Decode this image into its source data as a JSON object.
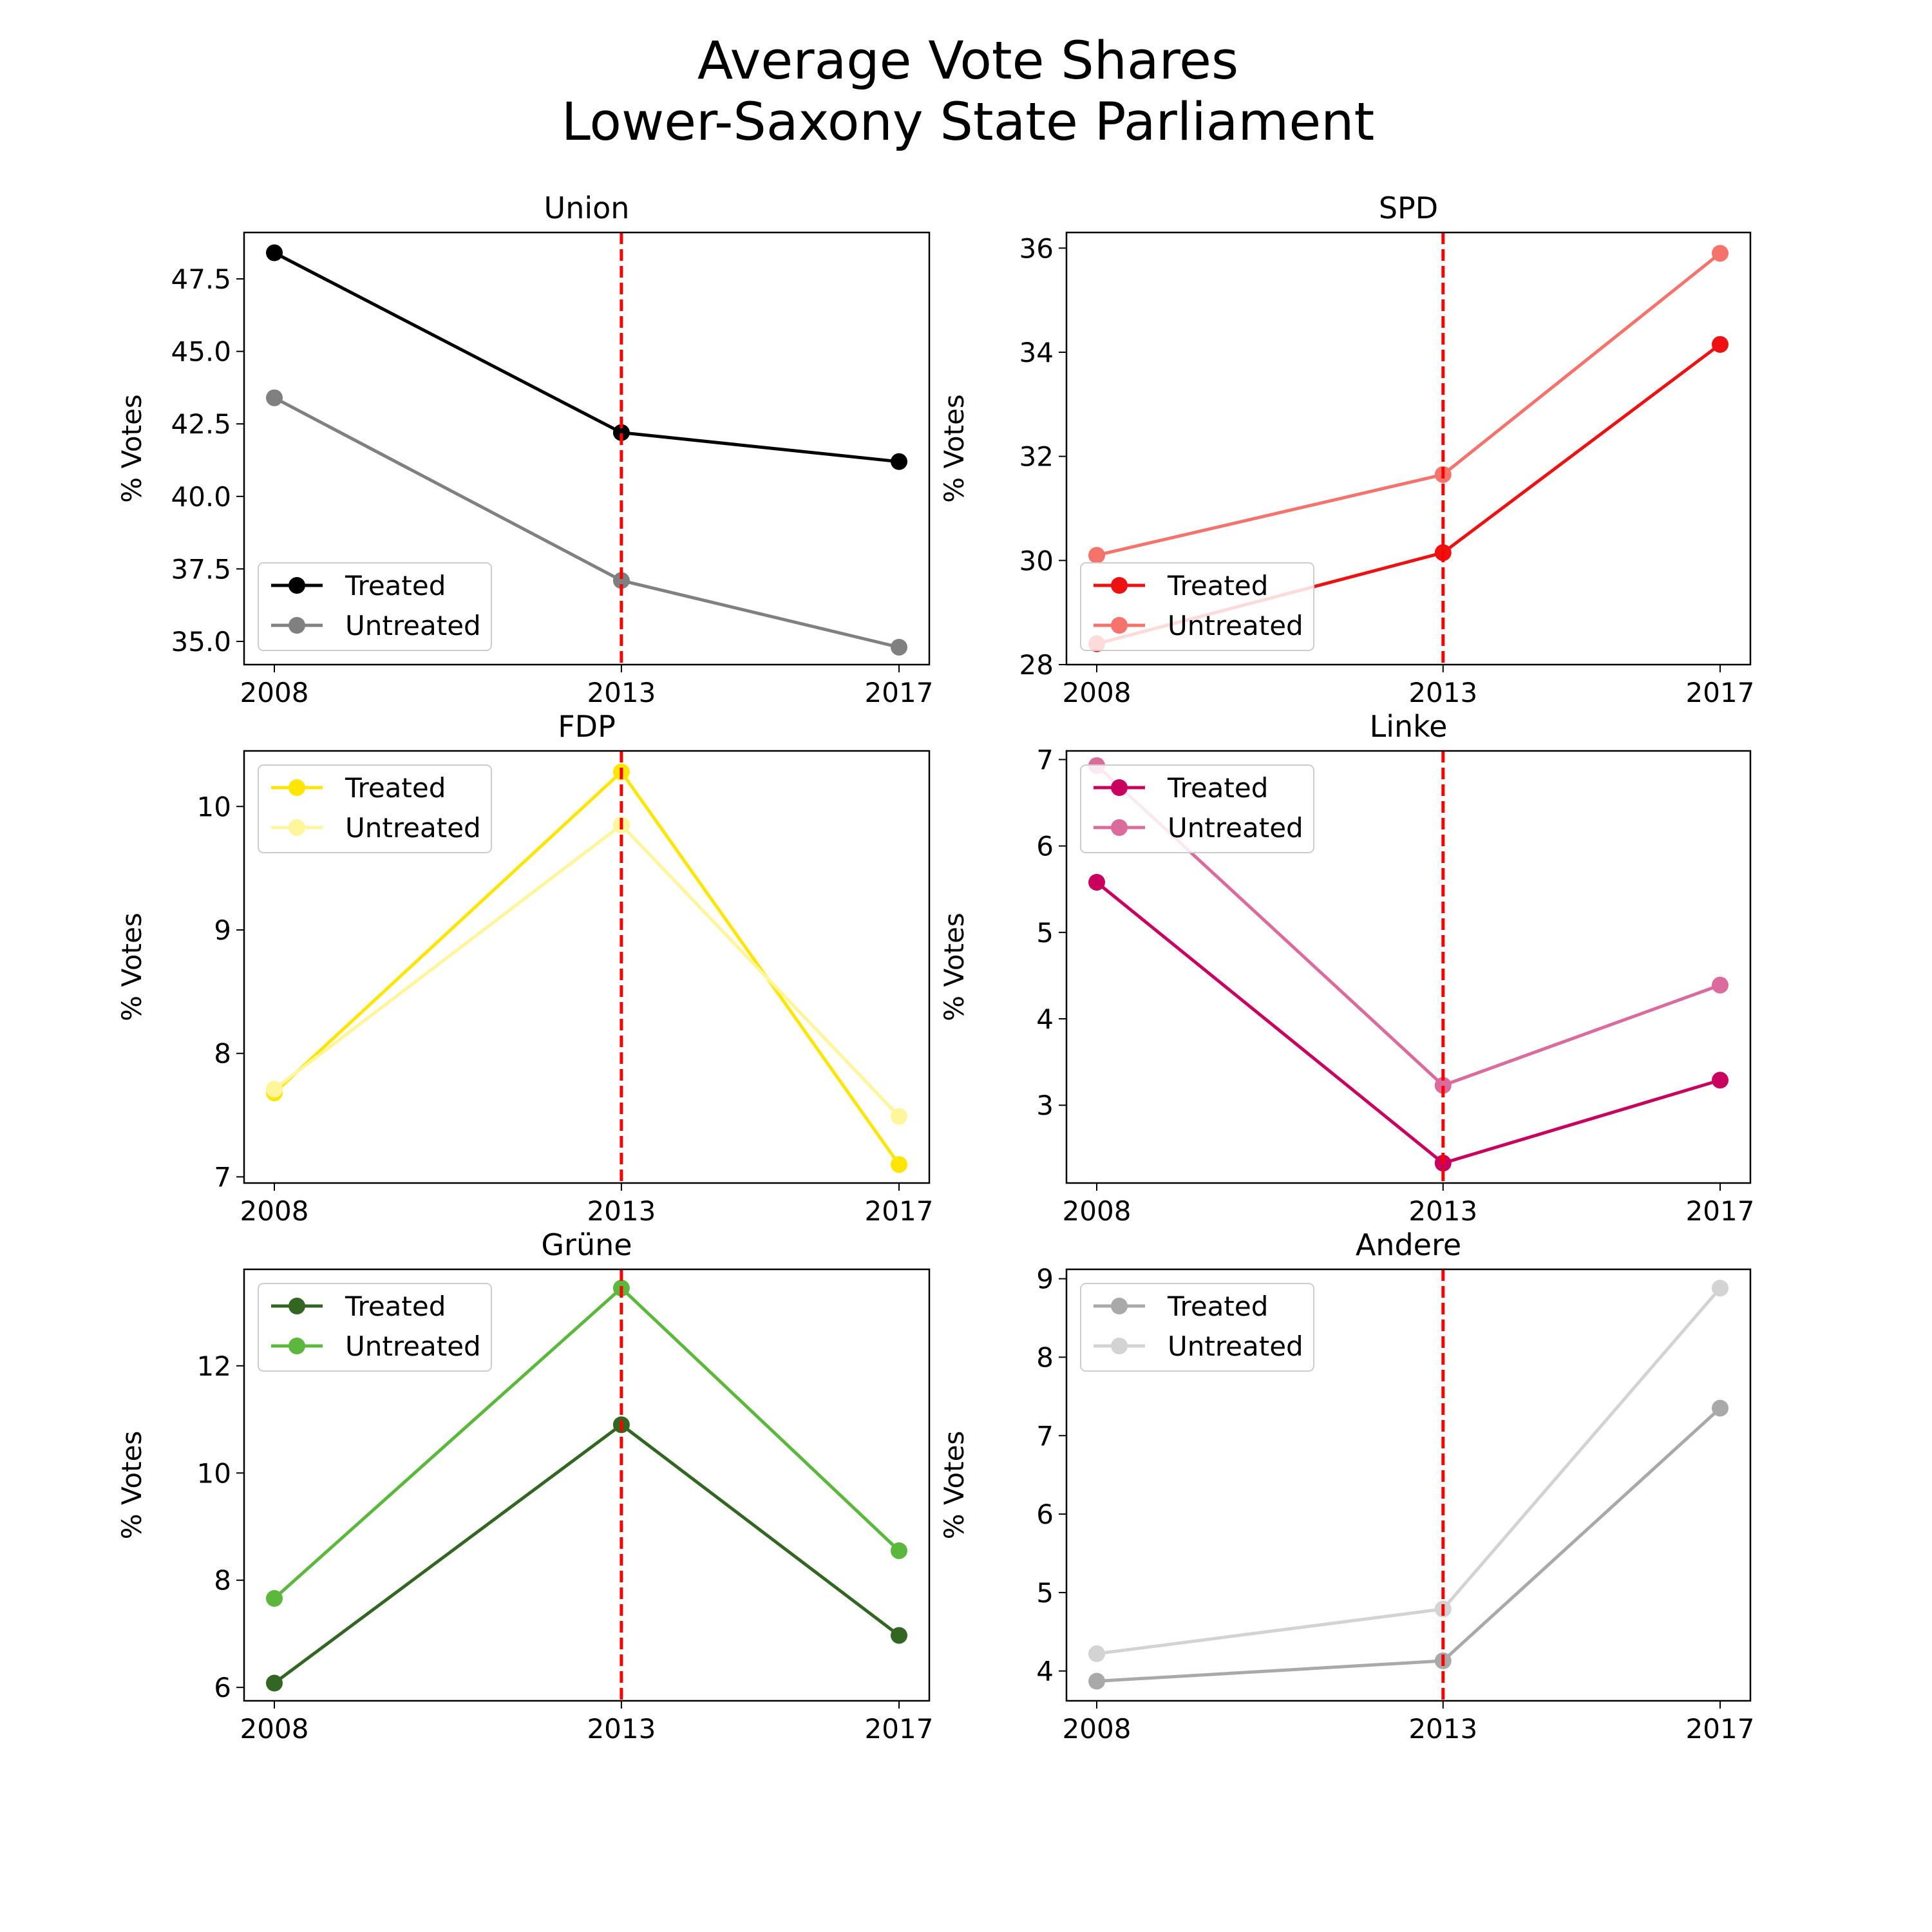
{
  "title_line1": "Average Vote Shares",
  "title_line2": "Lower-Saxony State Parliament",
  "treatment_line_color": "#ff0000",
  "chart_data": [
    {
      "type": "line",
      "title": "Union",
      "ylabel": "% Votes",
      "x": [
        2008,
        2013,
        2017
      ],
      "ylim": [
        34.2,
        49.1
      ],
      "yticks": [
        35.0,
        37.5,
        40.0,
        42.5,
        45.0,
        47.5
      ],
      "ytick_decimals": 1,
      "legend_position": "lower-left",
      "treatment_year": 2013,
      "series": [
        {
          "name": "Treated",
          "color": "#000000",
          "values": [
            48.4,
            42.2,
            41.2
          ]
        },
        {
          "name": "Untreated",
          "color": "#808080",
          "values": [
            43.4,
            37.1,
            34.8
          ]
        }
      ]
    },
    {
      "type": "line",
      "title": "SPD",
      "ylabel": "% Votes",
      "x": [
        2008,
        2013,
        2017
      ],
      "ylim": [
        28.0,
        36.3
      ],
      "yticks": [
        28,
        30,
        32,
        34,
        36
      ],
      "ytick_decimals": 0,
      "legend_position": "lower-left",
      "treatment_year": 2013,
      "series": [
        {
          "name": "Treated",
          "color": "#ee1111",
          "values": [
            28.4,
            30.15,
            34.15
          ]
        },
        {
          "name": "Untreated",
          "color": "#f5736a",
          "values": [
            30.1,
            31.65,
            35.9
          ]
        }
      ]
    },
    {
      "type": "line",
      "title": "FDP",
      "ylabel": "% Votes",
      "x": [
        2008,
        2013,
        2017
      ],
      "ylim": [
        6.95,
        10.45
      ],
      "yticks": [
        7,
        8,
        9,
        10
      ],
      "ytick_decimals": 0,
      "legend_position": "upper-left",
      "treatment_year": 2013,
      "series": [
        {
          "name": "Treated",
          "color": "#ffe600",
          "values": [
            7.68,
            10.28,
            7.1
          ]
        },
        {
          "name": "Untreated",
          "color": "#fff59a",
          "values": [
            7.71,
            9.85,
            7.49
          ]
        }
      ]
    },
    {
      "type": "line",
      "title": "Linke",
      "ylabel": "% Votes",
      "x": [
        2008,
        2013,
        2017
      ],
      "ylim": [
        2.1,
        7.1
      ],
      "yticks": [
        3,
        4,
        5,
        6,
        7
      ],
      "ytick_decimals": 0,
      "legend_position": "upper-left",
      "treatment_year": 2013,
      "series": [
        {
          "name": "Treated",
          "color": "#c9005e",
          "values": [
            5.58,
            2.33,
            3.29
          ]
        },
        {
          "name": "Untreated",
          "color": "#db6a9d",
          "values": [
            6.93,
            3.23,
            4.39
          ]
        }
      ]
    },
    {
      "type": "line",
      "title": "Grüne",
      "ylabel": "% Votes",
      "x": [
        2008,
        2013,
        2017
      ],
      "ylim": [
        5.75,
        13.8
      ],
      "yticks": [
        6,
        8,
        10,
        12
      ],
      "ytick_decimals": 0,
      "legend_position": "upper-left",
      "treatment_year": 2013,
      "series": [
        {
          "name": "Treated",
          "color": "#336622",
          "values": [
            6.08,
            10.9,
            6.97
          ]
        },
        {
          "name": "Untreated",
          "color": "#5cb83c",
          "values": [
            7.66,
            13.45,
            8.55
          ]
        }
      ]
    },
    {
      "type": "line",
      "title": "Andere",
      "ylabel": "% Votes",
      "x": [
        2008,
        2013,
        2017
      ],
      "ylim": [
        3.62,
        9.12
      ],
      "yticks": [
        4,
        5,
        6,
        7,
        8,
        9
      ],
      "ytick_decimals": 0,
      "legend_position": "upper-left",
      "treatment_year": 2013,
      "series": [
        {
          "name": "Treated",
          "color": "#a9a9a9",
          "values": [
            3.87,
            4.13,
            7.35
          ]
        },
        {
          "name": "Untreated",
          "color": "#d3d3d3",
          "values": [
            4.22,
            4.79,
            8.88
          ]
        }
      ]
    }
  ]
}
